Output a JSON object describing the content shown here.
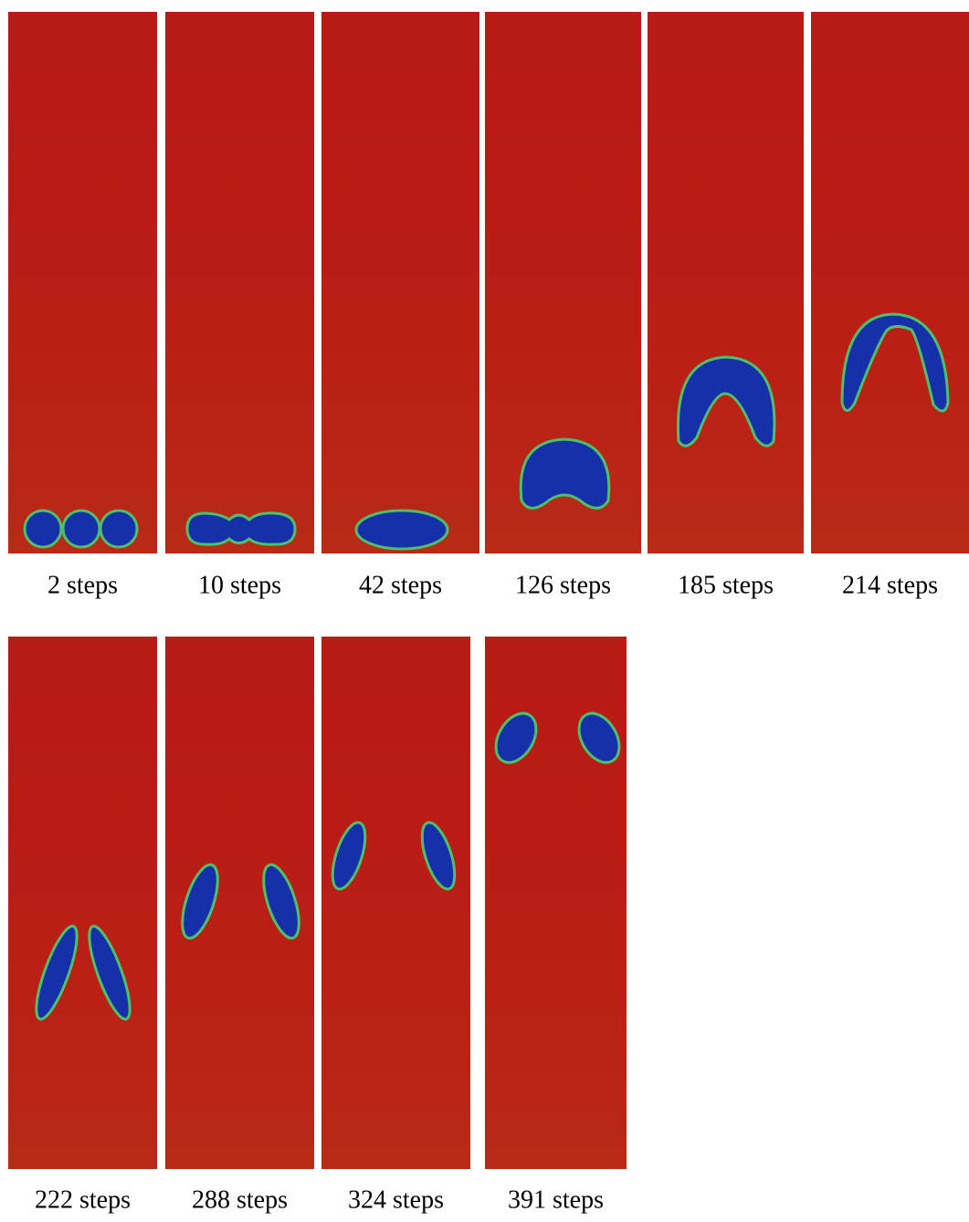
{
  "panels": [
    {
      "label": "2 steps"
    },
    {
      "label": "10 steps"
    },
    {
      "label": "42 steps"
    },
    {
      "label": "126 steps"
    },
    {
      "label": "185 steps"
    },
    {
      "label": "214 steps"
    },
    {
      "label": "222 steps"
    },
    {
      "label": "288 steps"
    },
    {
      "label": "324 steps"
    },
    {
      "label": "391 steps"
    }
  ]
}
